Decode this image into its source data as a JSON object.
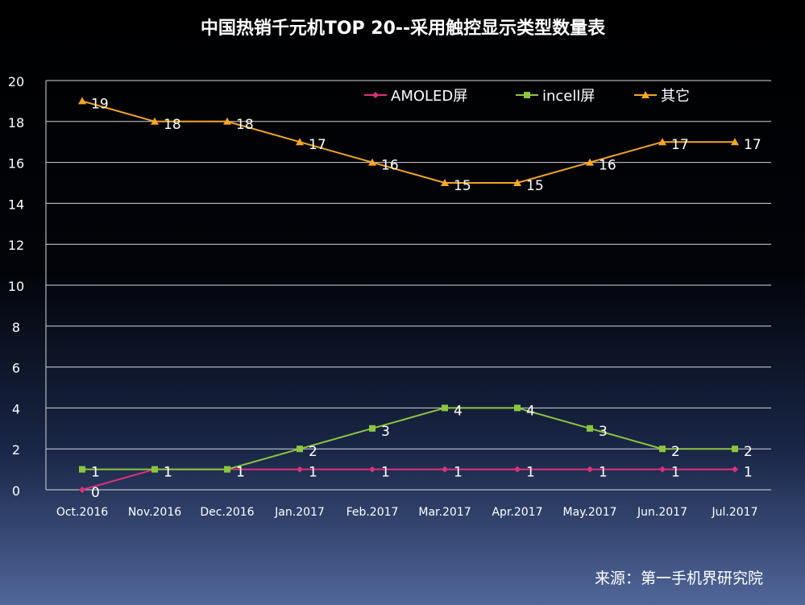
{
  "chart_data": {
    "type": "line",
    "title": "中国热销千元机TOP 20--采用触控显示类型数量表",
    "xlabel": "",
    "ylabel": "",
    "ylim": [
      0,
      20
    ],
    "yticks": [
      "0",
      "2",
      "4",
      "6",
      "8",
      "10",
      "12",
      "14",
      "16",
      "18",
      "20"
    ],
    "categories": [
      "Oct.2016",
      "Nov.2016",
      "Dec.2016",
      "Jan.2017",
      "Feb.2017",
      "Mar.2017",
      "Apr.2017",
      "May.2017",
      "Jun.2017",
      "Jul.2017"
    ],
    "grid": true,
    "legend_position": "top-right",
    "series": [
      {
        "name": "AMOLED屏",
        "values": [
          0,
          1,
          1,
          1,
          1,
          1,
          1,
          1,
          1,
          1
        ],
        "color": "#e0307a",
        "marker": "diamond"
      },
      {
        "name": "incell屏",
        "values": [
          1,
          1,
          1,
          2,
          3,
          4,
          4,
          3,
          2,
          2
        ],
        "color": "#8cc63e",
        "marker": "square"
      },
      {
        "name": "其它",
        "values": [
          19,
          18,
          18,
          17,
          16,
          15,
          15,
          16,
          17,
          17
        ],
        "color": "#f5a623",
        "marker": "triangle"
      }
    ]
  },
  "source": "来源：第一手机界研究院"
}
